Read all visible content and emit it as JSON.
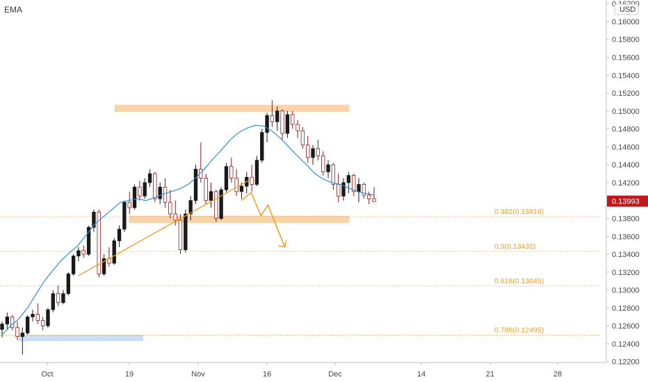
{
  "indicator_label": "EMA",
  "currency_label": "USD",
  "colors": {
    "candle_up": "#1a1a1a",
    "candle_down": "#8b1a1a",
    "ema_line": "#2f8fd6",
    "zone_fill": "#f7c48c",
    "support_zone_fill": "#b9d3f5",
    "trendline": "#f29b1c",
    "fib_line": "#f29b1c",
    "price_badge": "#c0161c",
    "axis_text": "#444444",
    "axis_line": "#bfbfbf"
  },
  "chart_data": {
    "type": "candlestick",
    "title": "",
    "ylabel": "USD",
    "ylim": [
      0.1212,
      0.1624
    ],
    "y_ticks": [
      "0.16200",
      "0.16000",
      "0.15800",
      "0.15600",
      "0.15400",
      "0.15200",
      "0.15000",
      "0.14800",
      "0.14600",
      "0.14400",
      "0.14200",
      "0.13800",
      "0.13600",
      "0.13400",
      "0.13200",
      "0.13000",
      "0.12800",
      "0.12600",
      "0.12400",
      "0.12200"
    ],
    "x_ticks": [
      "Oct",
      "19",
      "Nov",
      "16",
      "Dec",
      "14",
      "21",
      "28"
    ],
    "last_price": "0.13993",
    "fib_levels": [
      {
        "label": "0.382(0.13818)",
        "value": 0.13818
      },
      {
        "label": "0.5(0.13432)",
        "value": 0.13432
      },
      {
        "label": "0.618(0.13045)",
        "value": 0.13045
      },
      {
        "label": "0.786(0.12495)",
        "value": 0.12495
      }
    ],
    "zones": [
      {
        "name": "resistance-zone",
        "from_day": 14,
        "to_day": 63,
        "low": 0.1499,
        "high": 0.1507
      },
      {
        "name": "middle-zone",
        "from_day": 17,
        "to_day": 63,
        "low": 0.1375,
        "high": 0.1383
      },
      {
        "name": "support-zone",
        "from_day": -6,
        "to_day": 20,
        "low": 0.1243,
        "high": 0.125
      }
    ],
    "trendline": {
      "start_day": 6.5,
      "start_price": 0.1316,
      "end_day": 42.5,
      "end_price": 0.1424
    },
    "projection": [
      {
        "day": 40.5,
        "price": 0.14
      },
      {
        "day": 42.5,
        "price": 0.1409
      },
      {
        "day": 44.5,
        "price": 0.1383
      },
      {
        "day": 46,
        "price": 0.1395
      },
      {
        "day": 49.5,
        "price": 0.1348
      }
    ],
    "candles_ohlc": [
      [
        0.1256,
        0.1265,
        0.1247,
        0.1262
      ],
      [
        0.1262,
        0.1275,
        0.1256,
        0.127
      ],
      [
        0.127,
        0.1272,
        0.1255,
        0.1258
      ],
      [
        0.1258,
        0.1265,
        0.1244,
        0.1248
      ],
      [
        0.1248,
        0.1258,
        0.1228,
        0.1252
      ],
      [
        0.1252,
        0.1272,
        0.125,
        0.127
      ],
      [
        0.127,
        0.1278,
        0.1265,
        0.1273
      ],
      [
        0.1273,
        0.1285,
        0.1262,
        0.1266
      ],
      [
        0.1266,
        0.127,
        0.1255,
        0.126
      ],
      [
        0.126,
        0.128,
        0.1258,
        0.1278
      ],
      [
        0.1278,
        0.13,
        0.1275,
        0.1296
      ],
      [
        0.1296,
        0.1305,
        0.1282,
        0.1286
      ],
      [
        0.1286,
        0.13,
        0.1284,
        0.1296
      ],
      [
        0.1296,
        0.132,
        0.1294,
        0.1318
      ],
      [
        0.1318,
        0.134,
        0.1316,
        0.1338
      ],
      [
        0.1338,
        0.1348,
        0.1332,
        0.1344
      ],
      [
        0.1344,
        0.135,
        0.1336,
        0.134
      ],
      [
        0.134,
        0.1372,
        0.1338,
        0.137
      ],
      [
        0.137,
        0.139,
        0.1365,
        0.1387
      ],
      [
        0.1387,
        0.139,
        0.1314,
        0.1318
      ],
      [
        0.1318,
        0.134,
        0.1316,
        0.1335
      ],
      [
        0.1335,
        0.1348,
        0.1326,
        0.133
      ],
      [
        0.133,
        0.1358,
        0.1328,
        0.1355
      ],
      [
        0.1355,
        0.1372,
        0.1348,
        0.1368
      ],
      [
        0.1368,
        0.14,
        0.1365,
        0.1398
      ],
      [
        0.1398,
        0.141,
        0.1385,
        0.1392
      ],
      [
        0.1392,
        0.1418,
        0.139,
        0.1415
      ],
      [
        0.1415,
        0.1422,
        0.14,
        0.1405
      ],
      [
        0.1405,
        0.1425,
        0.1402,
        0.142
      ],
      [
        0.142,
        0.1435,
        0.1415,
        0.143
      ],
      [
        0.143,
        0.1432,
        0.1398,
        0.1402
      ],
      [
        0.1402,
        0.142,
        0.1396,
        0.1415
      ],
      [
        0.1415,
        0.1425,
        0.1392,
        0.1398
      ],
      [
        0.1398,
        0.1412,
        0.138,
        0.1385
      ],
      [
        0.1385,
        0.14,
        0.1372,
        0.1378
      ],
      [
        0.1378,
        0.1385,
        0.134,
        0.1345
      ],
      [
        0.1345,
        0.139,
        0.1342,
        0.1385
      ],
      [
        0.1385,
        0.1405,
        0.1378,
        0.14
      ],
      [
        0.14,
        0.144,
        0.1396,
        0.1435
      ],
      [
        0.1435,
        0.1465,
        0.142,
        0.1425
      ],
      [
        0.1425,
        0.143,
        0.1395,
        0.14
      ],
      [
        0.14,
        0.142,
        0.1392,
        0.141
      ],
      [
        0.141,
        0.1412,
        0.1376,
        0.138
      ],
      [
        0.138,
        0.1415,
        0.1378,
        0.1412
      ],
      [
        0.1412,
        0.1442,
        0.1408,
        0.1438
      ],
      [
        0.1438,
        0.1448,
        0.142,
        0.1425
      ],
      [
        0.1425,
        0.1435,
        0.1405,
        0.141
      ],
      [
        0.141,
        0.142,
        0.1402,
        0.1416
      ],
      [
        0.1416,
        0.1432,
        0.1408,
        0.1426
      ],
      [
        0.1426,
        0.144,
        0.141,
        0.1418
      ],
      [
        0.1418,
        0.145,
        0.1416,
        0.1445
      ],
      [
        0.1445,
        0.148,
        0.1442,
        0.1476
      ],
      [
        0.1476,
        0.1498,
        0.1465,
        0.1495
      ],
      [
        0.1495,
        0.1512,
        0.1482,
        0.1488
      ],
      [
        0.1488,
        0.1505,
        0.1478,
        0.15
      ],
      [
        0.15,
        0.1502,
        0.1468,
        0.1475
      ],
      [
        0.1475,
        0.15,
        0.147,
        0.1496
      ],
      [
        0.1496,
        0.15,
        0.148,
        0.1485
      ],
      [
        0.1485,
        0.149,
        0.147,
        0.1478
      ],
      [
        0.1478,
        0.1482,
        0.1458,
        0.1462
      ],
      [
        0.1462,
        0.1472,
        0.1442,
        0.1448
      ],
      [
        0.1448,
        0.1462,
        0.144,
        0.1458
      ],
      [
        0.1458,
        0.1468,
        0.1445,
        0.145
      ],
      [
        0.145,
        0.1455,
        0.1428,
        0.1432
      ],
      [
        0.1432,
        0.1445,
        0.1425,
        0.144
      ],
      [
        0.144,
        0.1442,
        0.1412,
        0.1418
      ],
      [
        0.1418,
        0.143,
        0.1398,
        0.1405
      ],
      [
        0.1405,
        0.1425,
        0.14,
        0.142
      ],
      [
        0.142,
        0.1432,
        0.1408,
        0.1428
      ],
      [
        0.1428,
        0.143,
        0.1405,
        0.141
      ],
      [
        0.141,
        0.1425,
        0.1398,
        0.1418
      ],
      [
        0.1418,
        0.142,
        0.1402,
        0.1406
      ],
      [
        0.1406,
        0.141,
        0.1396,
        0.1402
      ],
      [
        0.1402,
        0.1415,
        0.1398,
        0.1399
      ]
    ],
    "ema": [
      0.125,
      0.126,
      0.1268,
      0.128,
      0.1295,
      0.131,
      0.1322,
      0.1333,
      0.1342,
      0.135,
      0.1362,
      0.1374,
      0.1382,
      0.139,
      0.1398,
      0.14,
      0.1402,
      0.14,
      0.1403,
      0.1407,
      0.141,
      0.1413,
      0.1418,
      0.1426,
      0.1436,
      0.1447,
      0.1457,
      0.1468,
      0.1476,
      0.1481,
      0.1484,
      0.1483,
      0.1477,
      0.1469,
      0.1459,
      0.1449,
      0.144,
      0.143,
      0.1424,
      0.142,
      0.1418,
      0.1414,
      0.141,
      0.1408,
      0.1406
    ]
  }
}
